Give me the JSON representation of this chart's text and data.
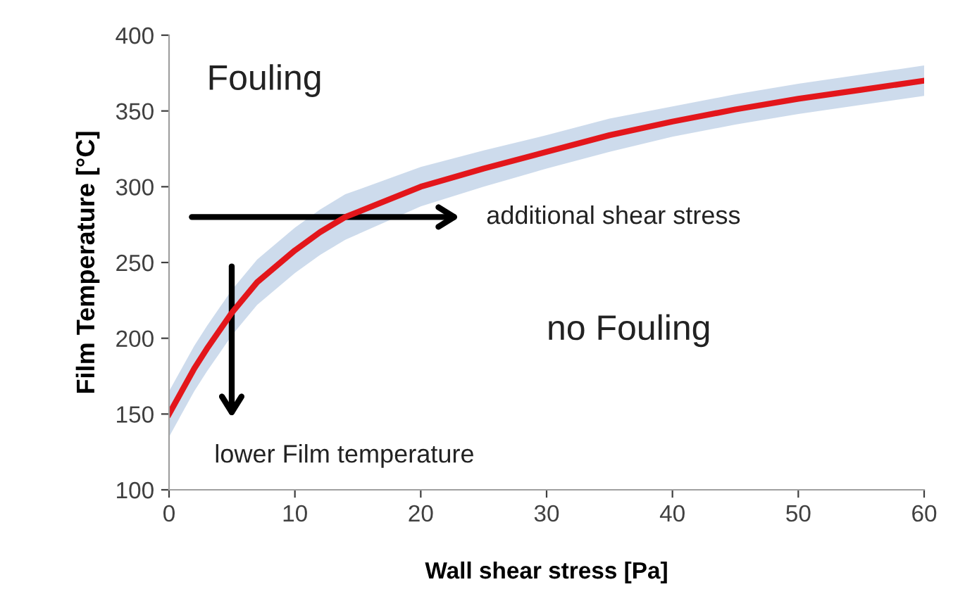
{
  "chart_data": {
    "type": "line",
    "xlabel": "Wall shear stress [Pa]",
    "ylabel": "Film Temperature [°C]",
    "series": [
      {
        "color": "#e3161b",
        "x": [
          0,
          1,
          2,
          3,
          4,
          5,
          7,
          10,
          12,
          14,
          17,
          20,
          25,
          30,
          35,
          40,
          45,
          50,
          55,
          60
        ],
        "values": [
          150,
          165,
          180,
          193,
          205,
          217,
          237,
          258,
          270,
          280,
          290,
          300,
          312,
          323,
          334,
          343,
          351,
          358,
          364,
          370
        ],
        "lower": [
          135,
          150,
          165,
          178,
          190,
          202,
          222,
          243,
          255,
          265,
          276,
          287,
          300,
          312,
          323,
          333,
          341,
          348,
          354,
          360
        ],
        "upper": [
          165,
          180,
          195,
          208,
          220,
          232,
          252,
          273,
          285,
          295,
          304,
          313,
          324,
          334,
          345,
          353,
          361,
          368,
          374,
          380
        ]
      }
    ],
    "annotations": [
      "Fouling",
      "no Fouling",
      "additional shear stress",
      "lower Film temperature"
    ],
    "xlim": [
      0,
      60
    ],
    "xticks": [
      0,
      10,
      20,
      30,
      40,
      50,
      60
    ],
    "ylim": [
      100,
      400
    ],
    "yticks": [
      100,
      150,
      200,
      250,
      300,
      350,
      400
    ],
    "grid": false,
    "marker": "none",
    "line_style": "solid"
  }
}
